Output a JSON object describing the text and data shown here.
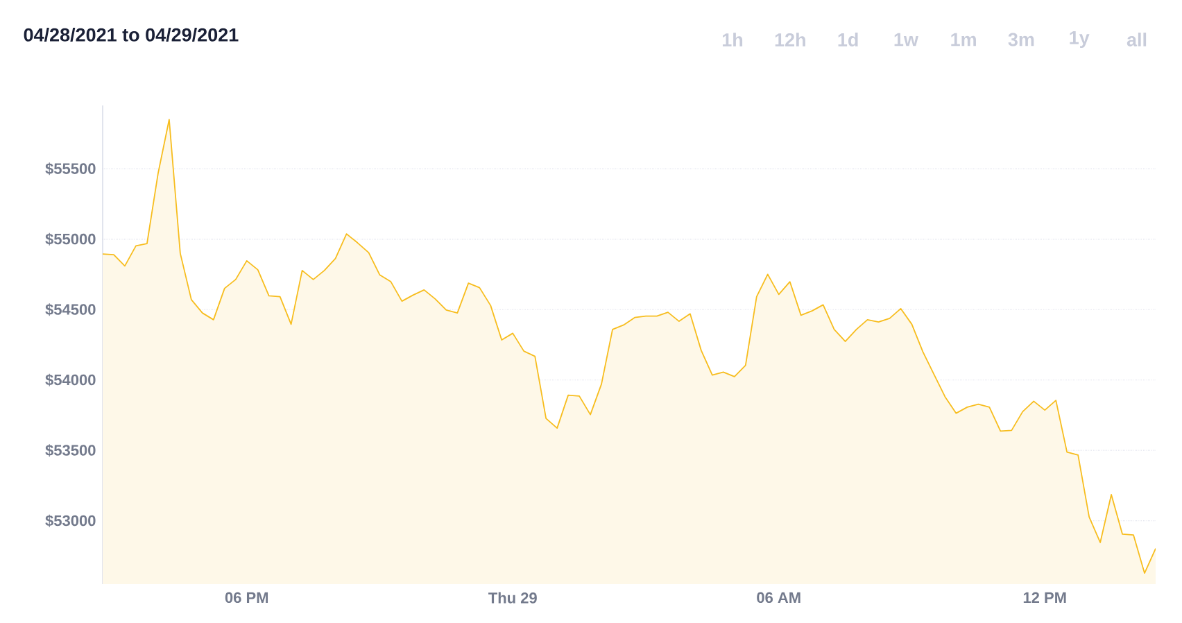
{
  "chart_data": {
    "type": "area",
    "title": "04/28/2021 to 04/29/2021",
    "annotations": [
      "1h",
      "12h",
      "1d",
      "1w",
      "1m",
      "3m",
      "1y",
      "all"
    ],
    "x": [
      "2021-04-28T14:45",
      "2021-04-28T15:00",
      "2021-04-28T15:15",
      "2021-04-28T15:30",
      "2021-04-28T15:45",
      "2021-04-28T16:00",
      "2021-04-28T16:15",
      "2021-04-28T16:30",
      "2021-04-28T16:45",
      "2021-04-28T17:00",
      "2021-04-28T17:15",
      "2021-04-28T17:30",
      "2021-04-28T17:45",
      "2021-04-28T18:00",
      "2021-04-28T18:15",
      "2021-04-28T18:30",
      "2021-04-28T18:45",
      "2021-04-28T19:00",
      "2021-04-28T19:15",
      "2021-04-28T19:30",
      "2021-04-28T19:45",
      "2021-04-28T20:00",
      "2021-04-28T20:15",
      "2021-04-28T20:30",
      "2021-04-28T20:45",
      "2021-04-28T21:00",
      "2021-04-28T21:15",
      "2021-04-28T21:30",
      "2021-04-28T21:45",
      "2021-04-28T22:00",
      "2021-04-28T22:15",
      "2021-04-28T22:30",
      "2021-04-28T22:45",
      "2021-04-28T23:00",
      "2021-04-28T23:15",
      "2021-04-28T23:30",
      "2021-04-28T23:45",
      "2021-04-29T00:00",
      "2021-04-29T00:15",
      "2021-04-29T00:30",
      "2021-04-29T00:45",
      "2021-04-29T01:00",
      "2021-04-29T01:15",
      "2021-04-29T01:30",
      "2021-04-29T01:45",
      "2021-04-29T02:00",
      "2021-04-29T02:15",
      "2021-04-29T02:30",
      "2021-04-29T02:45",
      "2021-04-29T03:00",
      "2021-04-29T03:15",
      "2021-04-29T03:30",
      "2021-04-29T03:45",
      "2021-04-29T04:00",
      "2021-04-29T04:15",
      "2021-04-29T04:30",
      "2021-04-29T04:45",
      "2021-04-29T05:00",
      "2021-04-29T05:15",
      "2021-04-29T05:30",
      "2021-04-29T05:45",
      "2021-04-29T06:00",
      "2021-04-29T06:15",
      "2021-04-29T06:30",
      "2021-04-29T06:45",
      "2021-04-29T07:00",
      "2021-04-29T07:15",
      "2021-04-29T07:30",
      "2021-04-29T07:45",
      "2021-04-29T08:00",
      "2021-04-29T08:15",
      "2021-04-29T08:30",
      "2021-04-29T08:45",
      "2021-04-29T09:00",
      "2021-04-29T09:15",
      "2021-04-29T09:30",
      "2021-04-29T09:45",
      "2021-04-29T10:00",
      "2021-04-29T10:15",
      "2021-04-29T10:30",
      "2021-04-29T10:45",
      "2021-04-29T11:00",
      "2021-04-29T11:15",
      "2021-04-29T11:30",
      "2021-04-29T11:45",
      "2021-04-29T12:00",
      "2021-04-29T12:15",
      "2021-04-29T12:30",
      "2021-04-29T12:45",
      "2021-04-29T13:00",
      "2021-04-29T13:15",
      "2021-04-29T13:30",
      "2021-04-29T13:45",
      "2021-04-29T14:00",
      "2021-04-29T14:15",
      "2021-04-29T14:30"
    ],
    "values": [
      54895,
      54890,
      54810,
      54953,
      54969,
      55468,
      55850,
      54900,
      54571,
      54476,
      54428,
      54651,
      54714,
      54847,
      54783,
      54598,
      54592,
      54396,
      54778,
      54714,
      54778,
      54863,
      55038,
      54974,
      54905,
      54746,
      54698,
      54560,
      54603,
      54640,
      54576,
      54497,
      54476,
      54688,
      54656,
      54529,
      54284,
      54332,
      54205,
      54168,
      53727,
      53658,
      53892,
      53886,
      53754,
      53971,
      54359,
      54391,
      54444,
      54454,
      54454,
      54481,
      54417,
      54470,
      54210,
      54035,
      54056,
      54024,
      54104,
      54592,
      54751,
      54608,
      54698,
      54460,
      54491,
      54534,
      54359,
      54274,
      54359,
      54428,
      54412,
      54438,
      54507,
      54396,
      54200,
      54040,
      53881,
      53764,
      53807,
      53828,
      53807,
      53637,
      53642,
      53775,
      53849,
      53786,
      53855,
      53488,
      53467,
      53027,
      52846,
      53186,
      52905,
      52899,
      52628,
      52803
    ],
    "color": "#f7bd1e",
    "xlim": [
      "2021-04-28T14:45",
      "2021-04-29T14:30"
    ],
    "xticks": [
      {
        "value": "2021-04-28T18:00",
        "label": "06 PM"
      },
      {
        "value": "2021-04-29T00:00",
        "label": "Thu 29"
      },
      {
        "value": "2021-04-29T06:00",
        "label": "06 AM"
      },
      {
        "value": "2021-04-29T12:00",
        "label": "12 PM"
      }
    ],
    "ylim": [
      52550,
      55950
    ],
    "yticks": [
      {
        "value": 53000,
        "label": "$53000"
      },
      {
        "value": 53500,
        "label": "$53500"
      },
      {
        "value": 54000,
        "label": "$54000"
      },
      {
        "value": 54500,
        "label": "$54500"
      },
      {
        "value": 55000,
        "label": "$55000"
      },
      {
        "value": 55500,
        "label": "$55500"
      }
    ],
    "grid": "y",
    "marker": "none",
    "line_style": "solid"
  }
}
